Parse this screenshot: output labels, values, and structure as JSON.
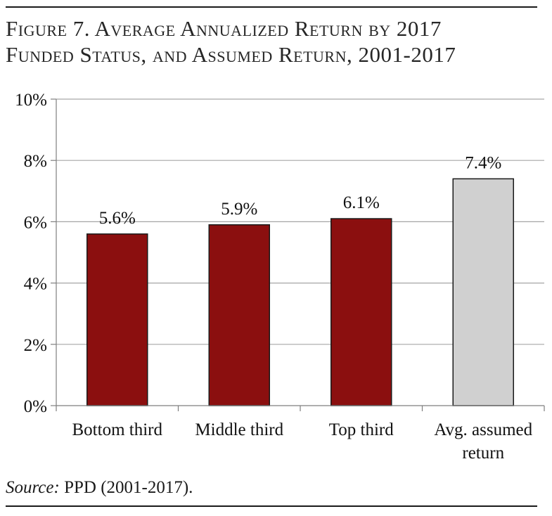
{
  "title": {
    "line1": "Figure 7. Average Annualized Return by 2017",
    "line2": "Funded Status, and Assumed Return, 2001-2017"
  },
  "source": {
    "label": "Source:",
    "text": " PPD (2001-2017)."
  },
  "colors": {
    "funded_bar": "#8b0f0f",
    "assumed_bar": "#d0d0d0",
    "bar_outline": "#1a1a1a",
    "gridline": "#a6a6a6"
  },
  "chart_data": {
    "type": "bar",
    "title": "Figure 7. Average Annualized Return by 2017 Funded Status, and Assumed Return, 2001-2017",
    "categories": [
      [
        "Bottom third"
      ],
      [
        "Middle third"
      ],
      [
        "Top third"
      ],
      [
        "Avg. assumed",
        "return"
      ]
    ],
    "values": [
      5.6,
      5.9,
      6.1,
      7.4
    ],
    "data_labels": [
      "5.6%",
      "5.9%",
      "6.1%",
      "7.4%"
    ],
    "bar_colors": [
      "#8b0f0f",
      "#8b0f0f",
      "#8b0f0f",
      "#d0d0d0"
    ],
    "ylim": [
      0,
      10
    ],
    "yticks": [
      0,
      2,
      4,
      6,
      8,
      10
    ],
    "ytick_labels": [
      "0%",
      "2%",
      "4%",
      "6%",
      "8%",
      "10%"
    ],
    "xlabel": "",
    "ylabel": "",
    "grid": true,
    "legend": "none"
  }
}
